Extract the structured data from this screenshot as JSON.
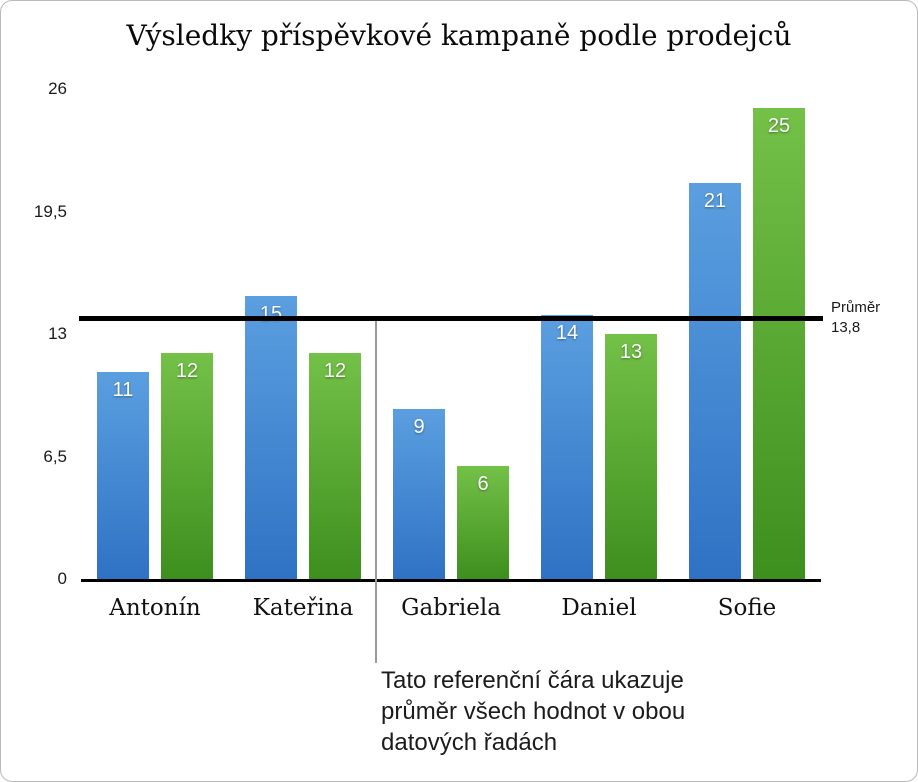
{
  "frame": {
    "background": "#ffffff",
    "border_color": "#b9b9b9"
  },
  "chart_data": {
    "type": "bar",
    "title": "Výsledky příspěvkové kampaně podle prodejců",
    "categories": [
      "Antonín",
      "Kateřina",
      "Gabriela",
      "Daniel",
      "Sofie"
    ],
    "series": [
      {
        "name": "blue-series",
        "color_top": "#5b9fe0",
        "color_bottom": "#2f72c4",
        "values": [
          11,
          15,
          9,
          14,
          21
        ]
      },
      {
        "name": "green-series",
        "color_top": "#74c148",
        "color_bottom": "#3d8f1e",
        "values": [
          12,
          12,
          6,
          13,
          25
        ]
      }
    ],
    "ylim": [
      0,
      26
    ],
    "yticks": [
      0,
      6.5,
      13,
      19.5,
      26
    ],
    "ytick_labels": [
      "0",
      "6,5",
      "13",
      "19,5",
      "26"
    ],
    "grid": false,
    "legend_position": "none",
    "axis_color": "#000000",
    "reference_line": {
      "value": 13.8,
      "color": "#000000",
      "label_line1": "Průměr",
      "label_line2": "13,8"
    }
  },
  "callout": {
    "line_color": "#9a9a9a",
    "text_line1": "Tato referenční čára ukazuje",
    "text_line2": "průměr všech hodnot v obou",
    "text_line3": "datových řadách"
  }
}
